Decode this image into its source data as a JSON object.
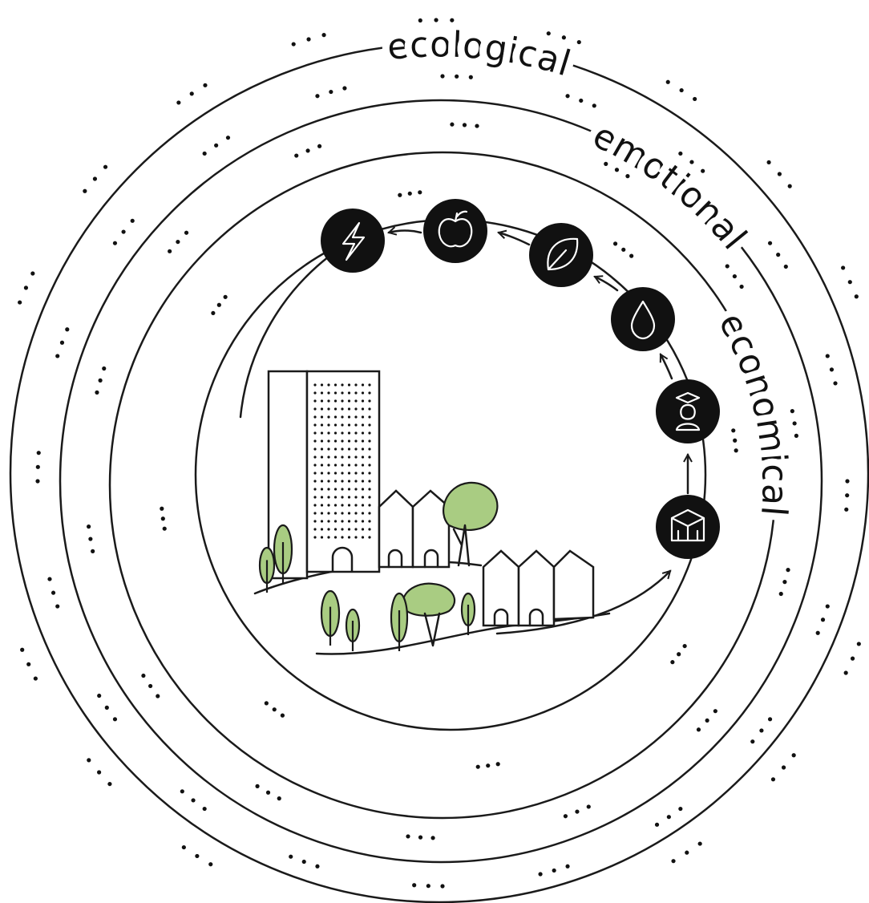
{
  "rings": [
    {
      "label": "ecological"
    },
    {
      "label": "emotional"
    },
    {
      "label": "economical"
    }
  ]
}
